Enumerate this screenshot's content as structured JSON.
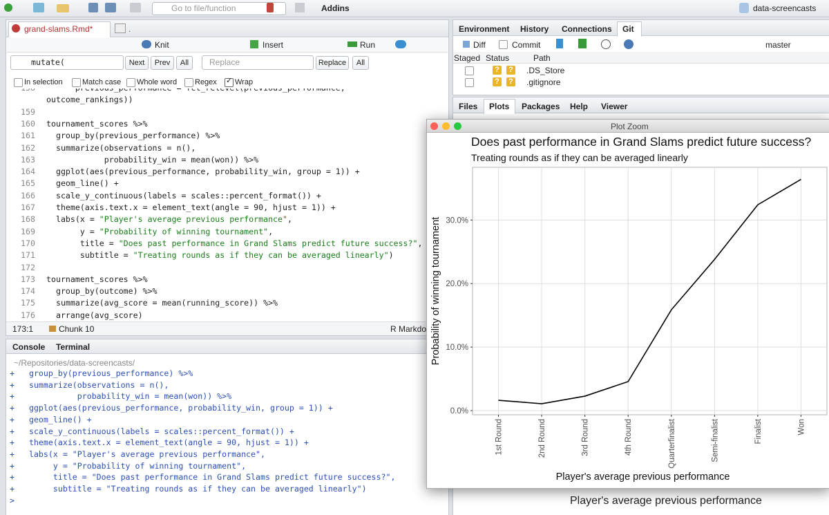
{
  "toolbar": {
    "goto": "Go to file/function",
    "addins": "Addins",
    "project": "data-screencasts"
  },
  "editor": {
    "tabs": [
      "grand-slams.Rmd*",
      "."
    ],
    "buttons": {
      "knit": "Knit",
      "insert": "Insert",
      "run": "Run"
    },
    "find": {
      "query": "mutate(",
      "next": "Next",
      "prev": "Prev",
      "all": "All",
      "replace_placeholder": "Replace",
      "replace": "Replace",
      "replace_all": "All",
      "options": [
        "In selection",
        "Match case",
        "Whole word",
        "Regex",
        "Wrap"
      ]
    },
    "lines": [
      {
        "n": 158,
        "code": "      previous_performance = fct_relevel(previous_performance,"
      },
      {
        "n": null,
        "code": "outcome_rankings))"
      },
      {
        "n": 159
      },
      {
        "n": 160,
        "code": "tournament_scores %>%"
      },
      {
        "n": 161,
        "code": "  group_by(previous_performance) %>%"
      },
      {
        "n": 162,
        "code": "  summarize(observations = n(),"
      },
      {
        "n": 163,
        "code": "            probability_win = mean(won)) %>%"
      },
      {
        "n": 164,
        "code": "  ggplot(aes(previous_performance, probability_win, group = 1)) +"
      },
      {
        "n": 165,
        "code": "  geom_line() +"
      },
      {
        "n": 166,
        "code": "  scale_y_continuous(labels = scales::percent_format()) +"
      },
      {
        "n": 167,
        "code": "  theme(axis.text.x = element_text(angle = 90, hjust = 1)) +"
      },
      {
        "n": 168,
        "code": "  labs(x = \"Player's average previous performance\","
      },
      {
        "n": 169,
        "code": "       y = \"Probability of winning tournament\","
      },
      {
        "n": 170,
        "code": "       title = \"Does past performance in Grand Slams predict future success?\","
      },
      {
        "n": 171,
        "code": "       subtitle = \"Treating rounds as if they can be averaged linearly\")"
      },
      {
        "n": 172
      },
      {
        "n": 173,
        "code": "tournament_scores %>%"
      },
      {
        "n": 174,
        "code": "  group_by(outcome) %>%"
      },
      {
        "n": 175,
        "code": "  summarize(avg_score = mean(running_score)) %>%"
      },
      {
        "n": 176,
        "code": "  arrange(avg_score)"
      }
    ],
    "status": {
      "position": "173:1",
      "chunk": "Chunk 10",
      "mode": "R Markdown"
    }
  },
  "console": {
    "tabs": [
      "Console",
      "Terminal"
    ],
    "path": "~/Repositories/data-screencasts/",
    "prompt": "+",
    "final_prompt": ">",
    "lines": [
      "  group_by(previous_performance) %>%",
      "  summarize(observations = n(),",
      "            probability_win = mean(won)) %>%",
      "  ggplot(aes(previous_performance, probability_win, group = 1)) +",
      "  geom_line() +",
      "  scale_y_continuous(labels = scales::percent_format()) +",
      "  theme(axis.text.x = element_text(angle = 90, hjust = 1)) +",
      "  labs(x = \"Player's average previous performance\",",
      "       y = \"Probability of winning tournament\",",
      "       title = \"Does past performance in Grand Slams predict future success?\",",
      "       subtitle = \"Treating rounds as if they can be averaged linearly\")"
    ]
  },
  "git_pane": {
    "tabs": [
      "Environment",
      "History",
      "Connections",
      "Git"
    ],
    "buttons": {
      "diff": "Diff",
      "commit": "Commit",
      "branch": "master"
    },
    "columns": [
      "Staged",
      "Status",
      "Path"
    ],
    "files": [
      {
        "name": ".DS_Store",
        "status": [
          "?",
          "?"
        ]
      },
      {
        "name": ".gitignore",
        "status": [
          "?",
          "?"
        ]
      }
    ]
  },
  "plots_pane": {
    "tabs": [
      "Files",
      "Plots",
      "Packages",
      "Help",
      "Viewer"
    ],
    "x_label": "Player's average previous performance"
  },
  "plot_window": {
    "title": "Plot Zoom"
  },
  "chart_data": {
    "type": "line",
    "title": "Does past performance in Grand Slams predict future success?",
    "subtitle": "Treating rounds as if they can be averaged linearly",
    "x_label": "Player's average previous performance",
    "y_label": "Probability of winning tournament",
    "categories": [
      "1st Round",
      "2nd Round",
      "3rd Round",
      "4th Round",
      "Quarterfinalist",
      "Semi-finalist",
      "Finalist",
      "Won"
    ],
    "values": [
      1.63,
      1.09,
      2.28,
      4.57,
      15.87,
      23.8,
      32.4,
      36.4
    ],
    "color": "#000000",
    "ylim": [
      -0.65,
      38.3
    ],
    "yticks": [
      {
        "value": 0,
        "label": "0.0%"
      },
      {
        "value": 10,
        "label": "10.0%"
      },
      {
        "value": 20,
        "label": "20.0%"
      },
      {
        "value": 30,
        "label": "30.0%"
      }
    ],
    "grid": true
  }
}
